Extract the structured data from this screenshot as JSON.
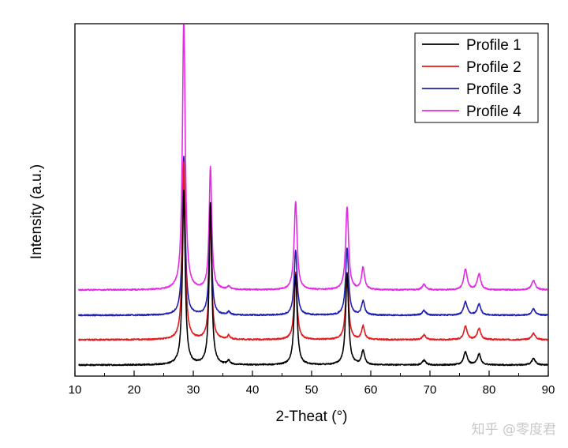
{
  "chart_data": {
    "type": "line",
    "title": "",
    "xlabel": "2-Theat (°)",
    "ylabel": "Intensity (a.u.)",
    "xlim": [
      10,
      90
    ],
    "xticks": [
      10,
      20,
      30,
      40,
      50,
      60,
      70,
      80,
      90
    ],
    "y_ticks_shown": false,
    "grid": false,
    "legend_position": "top-right",
    "peaks": [
      {
        "x": 28.4,
        "w": 0.28
      },
      {
        "x": 32.9,
        "w": 0.26
      },
      {
        "x": 36.0,
        "w": 0.25
      },
      {
        "x": 47.3,
        "w": 0.3
      },
      {
        "x": 56.0,
        "w": 0.3
      },
      {
        "x": 58.7,
        "w": 0.3
      },
      {
        "x": 69.0,
        "w": 0.35
      },
      {
        "x": 76.0,
        "w": 0.35
      },
      {
        "x": 78.3,
        "w": 0.35
      },
      {
        "x": 87.5,
        "w": 0.38
      }
    ],
    "series": [
      {
        "name": "Profile 1",
        "color": "#000000",
        "offset": 0,
        "heights": [
          220,
          205,
          5,
          115,
          115,
          18,
          6,
          17,
          14,
          8
        ]
      },
      {
        "name": "Profile 2",
        "color": "#e41a1c",
        "offset": 32,
        "heights": [
          225,
          150,
          5,
          85,
          85,
          17,
          6,
          17,
          14,
          8
        ]
      },
      {
        "name": "Profile 3",
        "color": "#1f1fb4",
        "offset": 63,
        "heights": [
          200,
          130,
          4,
          82,
          85,
          18,
          6,
          17,
          14,
          8
        ]
      },
      {
        "name": "Profile 4",
        "color": "#e52ae5",
        "offset": 95,
        "heights": [
          345,
          155,
          4,
          112,
          105,
          28,
          7,
          26,
          20,
          12
        ]
      }
    ]
  },
  "watermark": "知乎 @零度君"
}
